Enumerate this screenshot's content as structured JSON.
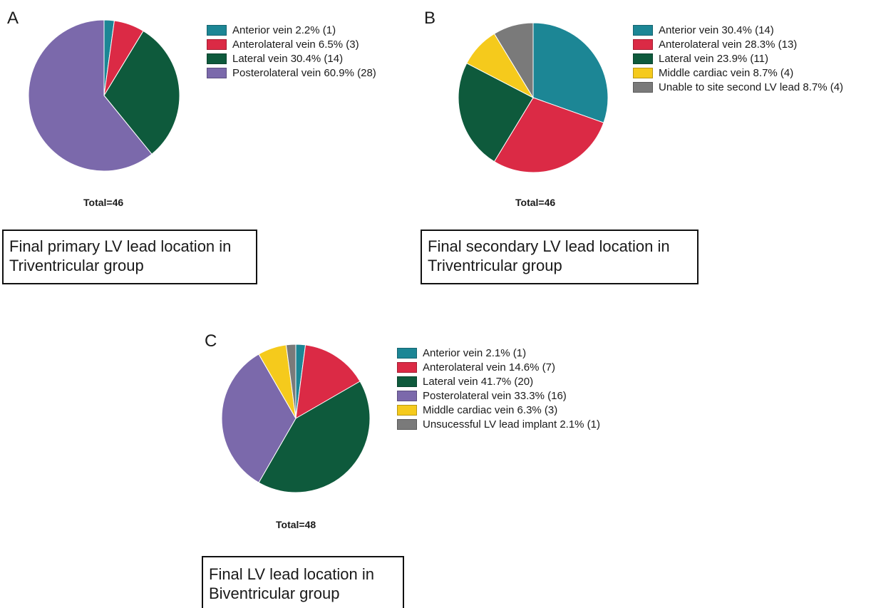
{
  "chart_data": [
    {
      "type": "pie",
      "panel": "A",
      "slices": [
        {
          "label": "Anterior vein 2.2% (1)",
          "value": 1,
          "color": "#1c8695"
        },
        {
          "label": "Anterolateral vein 6.5% (3)",
          "value": 3,
          "color": "#db2a45"
        },
        {
          "label": "Lateral vein 30.4% (14)",
          "value": 14,
          "color": "#0e5a3c"
        },
        {
          "label": "Posterolateral vein 60.9% (28)",
          "value": 28,
          "color": "#7b69ab"
        }
      ],
      "total_label": "Total=46",
      "caption": [
        "Final primary LV lead location in",
        "Triventricular group"
      ]
    },
    {
      "type": "pie",
      "panel": "B",
      "slices": [
        {
          "label": "Anterior vein 30.4% (14)",
          "value": 14,
          "color": "#1c8695"
        },
        {
          "label": "Anterolateral vein 28.3% (13)",
          "value": 13,
          "color": "#db2a45"
        },
        {
          "label": "Lateral vein 23.9% (11)",
          "value": 11,
          "color": "#0e5a3c"
        },
        {
          "label": "Middle cardiac vein 8.7% (4)",
          "value": 4,
          "color": "#f5ca1c"
        },
        {
          "label": "Unable to site second LV lead 8.7% (4)",
          "value": 4,
          "color": "#7a7a7a"
        }
      ],
      "total_label": "Total=46",
      "caption": [
        "Final secondary LV lead location in",
        "Triventricular group"
      ]
    },
    {
      "type": "pie",
      "panel": "C",
      "slices": [
        {
          "label": "Anterior vein 2.1% (1)",
          "value": 1,
          "color": "#1c8695"
        },
        {
          "label": "Anterolateral vein 14.6% (7)",
          "value": 7,
          "color": "#db2a45"
        },
        {
          "label": "Lateral vein 41.7% (20)",
          "value": 20,
          "color": "#0e5a3c"
        },
        {
          "label": "Posterolateral vein 33.3% (16)",
          "value": 16,
          "color": "#7b69ab"
        },
        {
          "label": "Middle cardiac vein 6.3% (3)",
          "value": 3,
          "color": "#f5ca1c"
        },
        {
          "label": "Unsucessful LV lead implant 2.1% (1)",
          "value": 1,
          "color": "#7a7a7a"
        }
      ],
      "total_label": "Total=48",
      "caption": [
        "Final LV lead location in",
        "Biventricular group"
      ]
    }
  ]
}
